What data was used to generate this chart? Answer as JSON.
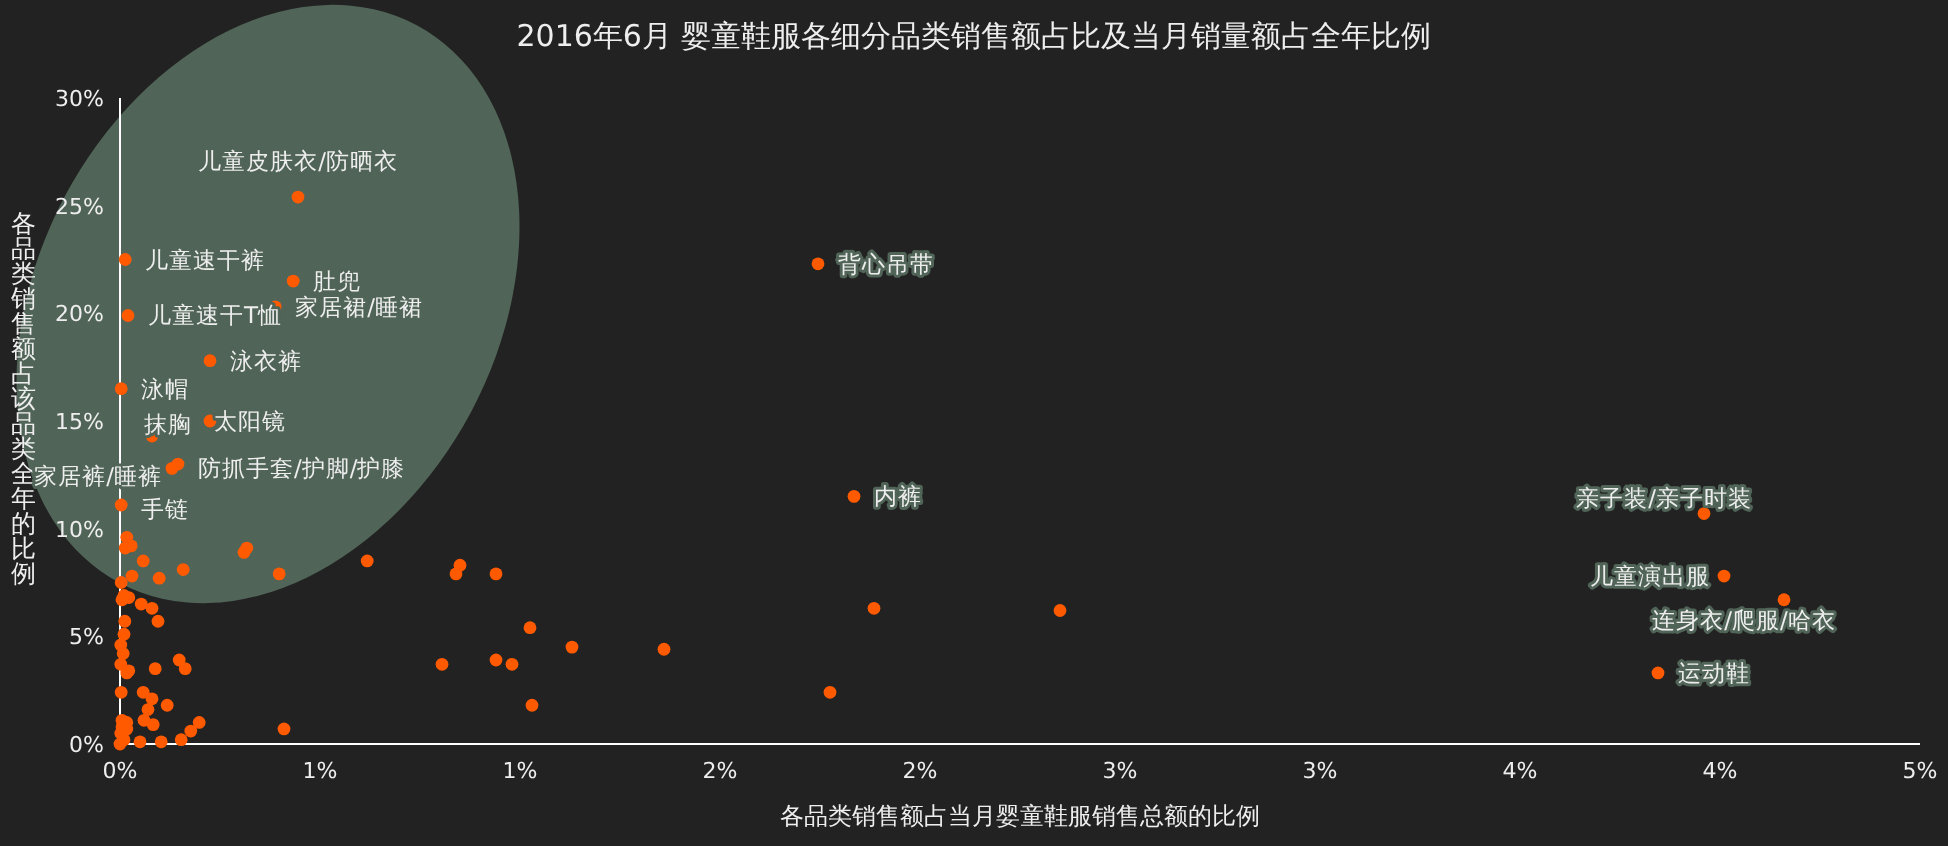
{
  "chart_data": {
    "type": "scatter",
    "title": "2016年6月 婴童鞋服各细分品类销售额占比及当月销量额占全年比例",
    "xlabel": "各品类销售额占当月婴童鞋服销售总额的比例",
    "ylabel": "各品类销售额占该品类全年的比例",
    "color": "#ff5a00",
    "marker": "circle",
    "grid": false,
    "xlim": [
      0,
      4.5
    ],
    "ylim": [
      0,
      30
    ],
    "xticks": [
      {
        "value": 0,
        "label": "0%"
      },
      {
        "value": 0.5,
        "label": "1%"
      },
      {
        "value": 1,
        "label": "1%"
      },
      {
        "value": 1.5,
        "label": "2%"
      },
      {
        "value": 2,
        "label": "2%"
      },
      {
        "value": 2.5,
        "label": "3%"
      },
      {
        "value": 3,
        "label": "3%"
      },
      {
        "value": 3.5,
        "label": "4%"
      },
      {
        "value": 4,
        "label": "4%"
      },
      {
        "value": 4.5,
        "label": "5%"
      }
    ],
    "yticks": [
      {
        "value": 0,
        "label": "0%"
      },
      {
        "value": 5,
        "label": "5%"
      },
      {
        "value": 10,
        "label": "10%"
      },
      {
        "value": 15,
        "label": "15%"
      },
      {
        "value": 20,
        "label": "20%"
      },
      {
        "value": 25,
        "label": "25%"
      },
      {
        "value": 30,
        "label": "30%"
      }
    ],
    "x": [
      0.445,
      0.013,
      0.433,
      0.388,
      0.02,
      0.225,
      0.003,
      0.225,
      0.08,
      0.145,
      0.13,
      0.003,
      1.745,
      1.835,
      3.96,
      4.01,
      4.16,
      3.845,
      0.85,
      0.84,
      0.94,
      1.025,
      1.13,
      1.36,
      0.805,
      0.94,
      0.98,
      1.03,
      1.885,
      2.35,
      1.775,
      0.017,
      0.028,
      0.013,
      0.058,
      0.317,
      0.31,
      0.618,
      0.158,
      0.03,
      0.098,
      0.398,
      0.003,
      0.01,
      0.022,
      0.005,
      0.053,
      0.08,
      0.095,
      0.012,
      0.01,
      0.002,
      0.008,
      0.002,
      0.022,
      0.017,
      0.088,
      0.148,
      0.163,
      0.003,
      0.058,
      0.08,
      0.118,
      0.07,
      0.005,
      0.017,
      0.06,
      0.083,
      0.198,
      0.177,
      0.153,
      0.103,
      0.05,
      0.41,
      0.002,
      0.01,
      0,
      0.017,
      0.005
    ],
    "values": [
      25.4,
      22.5,
      21.5,
      20.3,
      19.9,
      17.8,
      16.5,
      15.0,
      14.3,
      13.0,
      12.8,
      11.1,
      22.3,
      11.5,
      10.7,
      7.8,
      6.7,
      3.3,
      8.3,
      7.9,
      7.9,
      5.4,
      4.5,
      4.4,
      3.7,
      3.9,
      3.7,
      1.8,
      6.3,
      6.2,
      2.4,
      9.6,
      9.2,
      9.1,
      8.5,
      9.1,
      8.9,
      8.5,
      8.1,
      7.8,
      7.7,
      7.9,
      7.5,
      6.9,
      6.8,
      6.7,
      6.5,
      6.3,
      5.7,
      5.7,
      5.1,
      4.6,
      4.2,
      3.7,
      3.4,
      3.3,
      3.5,
      3.9,
      3.5,
      2.4,
      2.4,
      2.1,
      1.8,
      1.6,
      1.1,
      1.0,
      1.1,
      0.9,
      1.0,
      0.6,
      0.2,
      0.1,
      0.1,
      0.7,
      0.5,
      0.2,
      0,
      0.7,
      0.8
    ],
    "annotations": [
      {
        "text": "儿童皮肤衣/防晒衣",
        "x": 0.445,
        "y": 25.4
      },
      {
        "text": "儿童速干裤",
        "x": 0.013,
        "y": 22.5
      },
      {
        "text": "肚兜",
        "x": 0.433,
        "y": 21.5
      },
      {
        "text": "家居裙/睡裙",
        "x": 0.388,
        "y": 20.3
      },
      {
        "text": "儿童速干T恤",
        "x": 0.02,
        "y": 19.9
      },
      {
        "text": "泳衣裤",
        "x": 0.225,
        "y": 17.8
      },
      {
        "text": "泳帽",
        "x": 0.003,
        "y": 16.5
      },
      {
        "text": "太阳镜",
        "x": 0.225,
        "y": 15.0
      },
      {
        "text": "抹胸",
        "x": 0.08,
        "y": 14.3
      },
      {
        "text": "防抓手套/护脚/护膝",
        "x": 0.145,
        "y": 13.0
      },
      {
        "text": "家居裤/睡裤",
        "x": 0.13,
        "y": 12.8
      },
      {
        "text": "手链",
        "x": 0.003,
        "y": 11.1
      },
      {
        "text": "背心吊带",
        "x": 1.745,
        "y": 22.3
      },
      {
        "text": "内裤",
        "x": 1.835,
        "y": 11.5
      },
      {
        "text": "亲子装/亲子时装",
        "x": 3.96,
        "y": 10.7
      },
      {
        "text": "儿童演出服",
        "x": 4.01,
        "y": 7.8
      },
      {
        "text": "连身衣/爬服/哈衣",
        "x": 4.16,
        "y": 6.7
      },
      {
        "text": "运动鞋",
        "x": 3.845,
        "y": 3.3
      }
    ]
  }
}
